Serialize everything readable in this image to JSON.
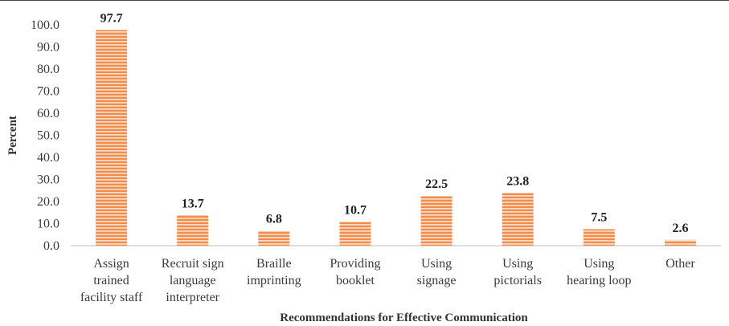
{
  "chart_data": {
    "type": "bar",
    "title": "",
    "xlabel": "Recommendations for Effective Communication",
    "ylabel": "Percent",
    "ylim": [
      0,
      100
    ],
    "yticks": [
      "0.0",
      "10.0",
      "20.0",
      "30.0",
      "40.0",
      "50.0",
      "60.0",
      "70.0",
      "80.0",
      "90.0",
      "100.0"
    ],
    "categories": [
      [
        "Assign",
        "trained",
        "facility staff"
      ],
      [
        "Recruit sign",
        "language",
        "interpreter"
      ],
      [
        "Braille",
        "imprinting"
      ],
      [
        "Providing",
        "booklet"
      ],
      [
        "Using",
        "signage"
      ],
      [
        "Using",
        "pictorials"
      ],
      [
        "Using",
        "hearing loop"
      ],
      [
        "Other"
      ]
    ],
    "values": [
      97.7,
      13.7,
      6.8,
      10.7,
      22.5,
      23.8,
      7.5,
      2.6
    ],
    "data_labels": [
      "97.7",
      "13.7",
      "6.8",
      "10.7",
      "22.5",
      "23.8",
      "7.5",
      "2.6"
    ],
    "bar_color": "#f28c4b",
    "stripe_color": "#ffffff",
    "grid": false,
    "legend": "none"
  }
}
